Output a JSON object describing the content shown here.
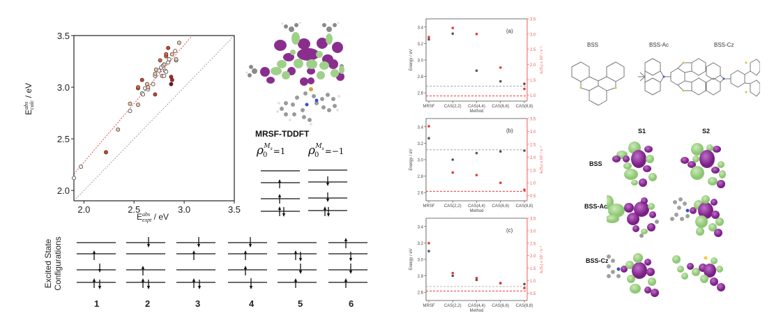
{
  "scatter": {
    "xlabel_base": "E",
    "xlabel_sup": "abs",
    "xlabel_sub": "expt",
    "xlabel_unit": " / eV",
    "ylabel_base": "E",
    "ylabel_sup": "abs",
    "ylabel_sub": "calc",
    "ylabel_unit": " / eV"
  },
  "molecule_panel": {
    "method_label": "MRSF-TDDFT",
    "ref_plus_label": "ρ0 Ms=1",
    "ref_minus_label": "ρ0 Ms=−1"
  },
  "configurations": {
    "axis_label_line1": "Excited State",
    "axis_label_line2": "Configurations",
    "items": [
      {
        "label": "1"
      },
      {
        "label": "2"
      },
      {
        "label": "3"
      },
      {
        "label": "4"
      },
      {
        "label": "5"
      },
      {
        "label": "6"
      }
    ]
  },
  "structures": {
    "items": [
      {
        "label": "BSS"
      },
      {
        "label": "BSS-Ac"
      },
      {
        "label": "BSS-Cz"
      }
    ]
  },
  "orbitals": {
    "col1": "S1",
    "col2": "S2",
    "rows": [
      {
        "label": "BSS"
      },
      {
        "label": "BSS-Ac"
      },
      {
        "label": "BSS-Cz"
      }
    ]
  },
  "chart_data": [
    {
      "type": "scatter",
      "title": "",
      "xlabel": "E_expt^abs / eV",
      "ylabel": "E_calc^abs / eV",
      "xlim": [
        1.9,
        3.5
      ],
      "ylim": [
        1.9,
        3.5
      ],
      "xticks": [
        2.0,
        2.5,
        3.0,
        3.5
      ],
      "yticks": [
        2.0,
        2.5,
        3.0,
        3.5
      ],
      "grid": false,
      "lines": [
        {
          "name": "y = x",
          "style": "dashed",
          "color": "#888888"
        },
        {
          "name": "linear fit",
          "style": "dashed",
          "color": "#dd2222",
          "intercept_at_1.9": 2.16,
          "value_at_3.08": 3.5
        }
      ],
      "points": [
        {
          "x": 1.9,
          "y": 2.12,
          "color": "#f7f0ea"
        },
        {
          "x": 1.97,
          "y": 2.23,
          "color": "#f7f0ea"
        },
        {
          "x": 2.22,
          "y": 2.37,
          "color": "#d73a2a"
        },
        {
          "x": 2.34,
          "y": 2.59,
          "color": "#f2c4a4"
        },
        {
          "x": 2.46,
          "y": 2.77,
          "color": "#f7f0ea"
        },
        {
          "x": 2.46,
          "y": 2.84,
          "color": "#f2c4a4"
        },
        {
          "x": 2.54,
          "y": 2.83,
          "color": "#f2c4a4"
        },
        {
          "x": 2.54,
          "y": 2.99,
          "color": "#e0603a"
        },
        {
          "x": 2.54,
          "y": 3.0,
          "color": "#e0603a"
        },
        {
          "x": 2.58,
          "y": 3.07,
          "color": "#d73a2a"
        },
        {
          "x": 2.58,
          "y": 2.94,
          "color": "#f7f0ea"
        },
        {
          "x": 2.59,
          "y": 2.93,
          "color": "#f7f0ea"
        },
        {
          "x": 2.61,
          "y": 2.99,
          "color": "#f7f0ea"
        },
        {
          "x": 2.63,
          "y": 3.03,
          "color": "#f2c4a4"
        },
        {
          "x": 2.64,
          "y": 2.98,
          "color": "#f7f0ea"
        },
        {
          "x": 2.64,
          "y": 3.0,
          "color": "#f2c4a4"
        },
        {
          "x": 2.69,
          "y": 3.03,
          "color": "#f7f0ea"
        },
        {
          "x": 2.71,
          "y": 2.93,
          "color": "#d73a2a"
        },
        {
          "x": 2.71,
          "y": 3.11,
          "color": "#f7f0ea"
        },
        {
          "x": 2.71,
          "y": 3.13,
          "color": "#f2c4a4"
        },
        {
          "x": 2.72,
          "y": 3.17,
          "color": "#f2c4a4"
        },
        {
          "x": 2.75,
          "y": 3.16,
          "color": "#f7f0ea"
        },
        {
          "x": 2.76,
          "y": 3.26,
          "color": "#e0603a"
        },
        {
          "x": 2.77,
          "y": 3.19,
          "color": "#f7f0ea"
        },
        {
          "x": 2.78,
          "y": 3.11,
          "color": "#f2c4a4"
        },
        {
          "x": 2.79,
          "y": 3.21,
          "color": "#f7f0ea"
        },
        {
          "x": 2.8,
          "y": 3.22,
          "color": "#f2c4a4"
        },
        {
          "x": 2.8,
          "y": 3.11,
          "color": "#f7f0ea"
        },
        {
          "x": 2.81,
          "y": 3.16,
          "color": "#f7f0ea"
        },
        {
          "x": 2.82,
          "y": 3.15,
          "color": "#f7f0ea"
        },
        {
          "x": 2.82,
          "y": 3.3,
          "color": "#e0603a"
        },
        {
          "x": 2.82,
          "y": 3.32,
          "color": "#e0603a"
        },
        {
          "x": 2.84,
          "y": 3.38,
          "color": "#d73a2a"
        },
        {
          "x": 2.84,
          "y": 3.24,
          "color": "#f7f0ea"
        },
        {
          "x": 2.85,
          "y": 3.27,
          "color": "#f7f0ea"
        },
        {
          "x": 2.87,
          "y": 3.1,
          "color": "#b8202a"
        },
        {
          "x": 2.87,
          "y": 3.03,
          "color": "#7a1020"
        },
        {
          "x": 2.88,
          "y": 3.07,
          "color": "#b8202a"
        },
        {
          "x": 2.88,
          "y": 3.32,
          "color": "#f2c4a4"
        },
        {
          "x": 2.91,
          "y": 3.35,
          "color": "#f7f0ea"
        },
        {
          "x": 2.92,
          "y": 3.26,
          "color": "#f7f0ea"
        },
        {
          "x": 2.92,
          "y": 3.27,
          "color": "#f2c4a4"
        },
        {
          "x": 2.95,
          "y": 3.43,
          "color": "#f2c4a4"
        }
      ]
    },
    {
      "type": "scatter",
      "panel": "(a)",
      "categories": [
        "MRSF",
        "CAS(2,2)",
        "CAS(4,4)",
        "CAS(6,6)",
        "CAS(8,8)"
      ],
      "xlabel": "Method",
      "ylabel": "Energy / eV",
      "ylabel_right": "k_r(S1) x 10^7 / s^-1",
      "ylim": [
        2.5,
        3.5
      ],
      "ylim_right": [
        0.8,
        3.5
      ],
      "yticks": [
        2.6,
        2.8,
        3.0,
        3.2,
        3.4
      ],
      "yticks_right": [
        1.0,
        1.5,
        2.0,
        2.5,
        3.0,
        3.5
      ],
      "series": [
        {
          "name": "Energy",
          "color": "#555555",
          "axis": "left",
          "values": [
            3.25,
            3.32,
            2.87,
            2.74,
            2.71
          ]
        },
        {
          "name": "k_r",
          "color": "#ee3333",
          "axis": "right",
          "values": [
            2.9,
            3.2,
            3.0,
            1.9,
            1.2
          ]
        }
      ],
      "reference_lines": [
        {
          "axis": "left",
          "value": 2.68,
          "color": "#888888"
        },
        {
          "axis": "right",
          "value": 0.97,
          "color": "#ee3333"
        }
      ]
    },
    {
      "type": "scatter",
      "panel": "(b)",
      "categories": [
        "MRSF",
        "CAS(2,2)",
        "CAS(4,4)",
        "CAS(6,6)",
        "CAS(8,8)"
      ],
      "xlabel": "Method",
      "ylabel": "Energy / eV",
      "ylabel_right": "k_r(S1) x 10^7 / s^-1",
      "ylim": [
        2.5,
        3.5
      ],
      "ylim_right": [
        0.3,
        3.5
      ],
      "yticks": [
        2.6,
        2.8,
        3.0,
        3.2,
        3.4
      ],
      "yticks_right": [
        0.5,
        1.0,
        1.5,
        2.0,
        2.5,
        3.0,
        3.5
      ],
      "series": [
        {
          "name": "Energy",
          "color": "#555555",
          "axis": "left",
          "values": [
            3.26,
            3.0,
            3.08,
            3.1,
            3.11
          ]
        },
        {
          "name": "k_r",
          "color": "#ee3333",
          "axis": "right",
          "values": [
            3.2,
            1.4,
            1.3,
            1.0,
            0.73
          ]
        }
      ],
      "reference_lines": [
        {
          "axis": "left",
          "value": 3.12,
          "color": "#888888"
        },
        {
          "axis": "right",
          "value": 0.67,
          "color": "#ee3333"
        }
      ]
    },
    {
      "type": "scatter",
      "panel": "(c)",
      "categories": [
        "MRSF",
        "CAS(2,2)",
        "CAS(4,4)",
        "CAS(6,6)",
        "CAS(8,8)"
      ],
      "xlabel": "Method",
      "ylabel": "Energy / eV",
      "ylabel_right": "k_r(S1) x 10^7 / s^-1",
      "ylim": [
        2.5,
        3.5
      ],
      "ylim_right": [
        0.2,
        3.5
      ],
      "yticks": [
        2.6,
        2.8,
        3.0,
        3.2,
        3.4
      ],
      "yticks_right": [
        0.5,
        1.0,
        1.5,
        2.0,
        2.5,
        3.0,
        3.5
      ],
      "series": [
        {
          "name": "Energy",
          "color": "#555555",
          "axis": "left",
          "values": [
            3.1,
            2.8,
            2.75,
            2.71,
            2.7
          ]
        },
        {
          "name": "k_r",
          "color": "#ee3333",
          "axis": "right",
          "values": [
            2.5,
            1.3,
            1.1,
            0.9,
            0.7
          ]
        }
      ],
      "reference_lines": [
        {
          "axis": "left",
          "value": 2.67,
          "color": "#888888"
        },
        {
          "axis": "right",
          "value": 0.58,
          "color": "#ee3333"
        }
      ]
    }
  ]
}
